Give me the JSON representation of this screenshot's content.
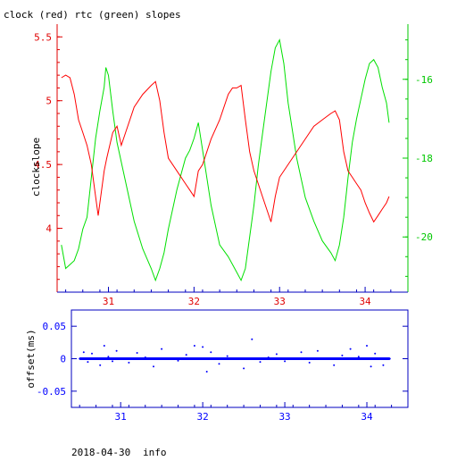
{
  "chart_data": [
    {
      "type": "line",
      "title": "clock (red) rtc (green) slopes",
      "ylabel": "clockslope",
      "xlim": [
        30.4,
        34.5
      ],
      "ylim": [
        3.5,
        5.6
      ],
      "y2lim": [
        -21.4,
        -14.6
      ],
      "x_ticks": [
        "31",
        "32",
        "33",
        "34"
      ],
      "y_ticks": [
        "4",
        "4.5",
        "5",
        "5.5"
      ],
      "y2_ticks": [
        "-20",
        "-18",
        "-16"
      ],
      "grid": false,
      "colors": {
        "clock": "#ff0000",
        "rtc": "#00e000",
        "frame": "#0000c0"
      },
      "series": [
        {
          "axis": "left",
          "x": [
            30.45,
            30.5,
            30.55,
            30.6,
            30.65,
            30.7,
            30.75,
            30.8,
            30.85,
            30.88,
            30.95,
            30.98,
            31.05,
            31.1,
            31.15,
            31.2,
            31.3,
            31.4,
            31.5,
            31.55,
            31.6,
            31.65,
            31.7,
            31.8,
            31.9,
            31.95,
            32.0,
            32.05,
            32.1,
            32.2,
            32.3,
            32.4,
            32.45,
            32.5,
            32.55,
            32.6,
            32.65,
            32.7,
            32.75,
            32.8,
            32.85,
            32.9,
            32.95,
            33.0,
            33.1,
            33.2,
            33.3,
            33.4,
            33.5,
            33.6,
            33.65,
            33.7,
            33.75,
            33.8,
            33.85,
            33.9,
            33.95,
            34.0,
            34.05,
            34.1,
            34.15,
            34.2,
            34.25,
            34.28
          ],
          "y": [
            5.18,
            5.2,
            5.18,
            5.05,
            4.85,
            4.75,
            4.65,
            4.5,
            4.25,
            4.1,
            4.45,
            4.55,
            4.75,
            4.8,
            4.65,
            4.75,
            4.95,
            5.05,
            5.12,
            5.15,
            5.0,
            4.75,
            4.55,
            4.45,
            4.35,
            4.3,
            4.25,
            4.45,
            4.5,
            4.7,
            4.85,
            5.05,
            5.1,
            5.1,
            5.12,
            4.85,
            4.6,
            4.45,
            4.35,
            4.25,
            4.15,
            4.05,
            4.25,
            4.4,
            4.5,
            4.6,
            4.7,
            4.8,
            4.85,
            4.9,
            4.92,
            4.85,
            4.6,
            4.45,
            4.4,
            4.35,
            4.3,
            4.2,
            4.12,
            4.05,
            4.1,
            4.15,
            4.2,
            4.25
          ]
        },
        {
          "axis": "right",
          "x": [
            30.45,
            30.5,
            30.55,
            30.6,
            30.65,
            30.7,
            30.75,
            30.8,
            30.85,
            30.9,
            30.95,
            30.97,
            31.0,
            31.05,
            31.1,
            31.2,
            31.3,
            31.4,
            31.5,
            31.55,
            31.6,
            31.65,
            31.7,
            31.8,
            31.9,
            31.95,
            32.0,
            32.05,
            32.1,
            32.2,
            32.3,
            32.4,
            32.5,
            32.55,
            32.6,
            32.65,
            32.7,
            32.75,
            32.8,
            32.85,
            32.9,
            32.95,
            33.0,
            33.05,
            33.1,
            33.2,
            33.3,
            33.4,
            33.5,
            33.6,
            33.65,
            33.7,
            33.75,
            33.8,
            33.85,
            33.9,
            33.95,
            34.0,
            34.05,
            34.1,
            34.15,
            34.2,
            34.25,
            34.28
          ],
          "y": [
            -20.2,
            -20.8,
            -20.7,
            -20.6,
            -20.3,
            -19.8,
            -19.5,
            -18.5,
            -17.5,
            -16.8,
            -16.2,
            -15.7,
            -15.9,
            -16.8,
            -17.6,
            -18.6,
            -19.6,
            -20.3,
            -20.8,
            -21.1,
            -20.8,
            -20.4,
            -19.8,
            -18.8,
            -18.0,
            -17.8,
            -17.5,
            -17.1,
            -17.8,
            -19.2,
            -20.2,
            -20.5,
            -20.9,
            -21.1,
            -20.8,
            -20.0,
            -19.2,
            -18.2,
            -17.4,
            -16.6,
            -15.8,
            -15.2,
            -15.0,
            -15.6,
            -16.6,
            -18.0,
            -19.0,
            -19.6,
            -20.1,
            -20.4,
            -20.6,
            -20.2,
            -19.5,
            -18.5,
            -17.6,
            -17.0,
            -16.5,
            -16.0,
            -15.6,
            -15.5,
            -15.7,
            -16.2,
            -16.6,
            -17.1
          ]
        }
      ]
    },
    {
      "type": "scatter",
      "ylabel": "offset(ms)",
      "xlim": [
        30.4,
        34.5
      ],
      "ylim": [
        -0.075,
        0.075
      ],
      "x_ticks": [
        "31",
        "32",
        "33",
        "34"
      ],
      "y_ticks": [
        "-0.05",
        "0",
        "0.05"
      ],
      "grid": false,
      "colors": {
        "points": "#0000ff",
        "frame": "#0000c0"
      },
      "series": [
        {
          "x": [
            30.5,
            30.55,
            30.6,
            30.65,
            30.7,
            30.75,
            30.8,
            30.85,
            30.9,
            30.95,
            31.0,
            31.1,
            31.2,
            31.3,
            31.4,
            31.5,
            31.6,
            31.7,
            31.8,
            31.9,
            32.0,
            32.05,
            32.1,
            32.2,
            32.3,
            32.4,
            32.5,
            32.6,
            32.7,
            32.8,
            32.9,
            33.0,
            33.1,
            33.2,
            33.3,
            33.4,
            33.5,
            33.6,
            33.7,
            33.8,
            33.9,
            34.0,
            34.05,
            34.1,
            34.2,
            34.28
          ],
          "y": [
            0.0,
            0.01,
            -0.005,
            0.008,
            0.0,
            -0.01,
            0.02,
            0.003,
            -0.004,
            0.012,
            0.0,
            -0.006,
            0.009,
            0.002,
            -0.012,
            0.015,
            0.0,
            -0.003,
            0.006,
            0.02,
            0.018,
            -0.02,
            0.01,
            -0.008,
            0.004,
            0.0,
            -0.015,
            0.03,
            -0.005,
            0.002,
            0.007,
            -0.004,
            0.0,
            0.01,
            -0.006,
            0.012,
            0.0,
            -0.01,
            0.005,
            0.015,
            0.003,
            0.02,
            -0.012,
            0.008,
            -0.01,
            0.0
          ]
        }
      ]
    }
  ],
  "footer": {
    "date": "2018-04-30",
    "info": "info"
  }
}
